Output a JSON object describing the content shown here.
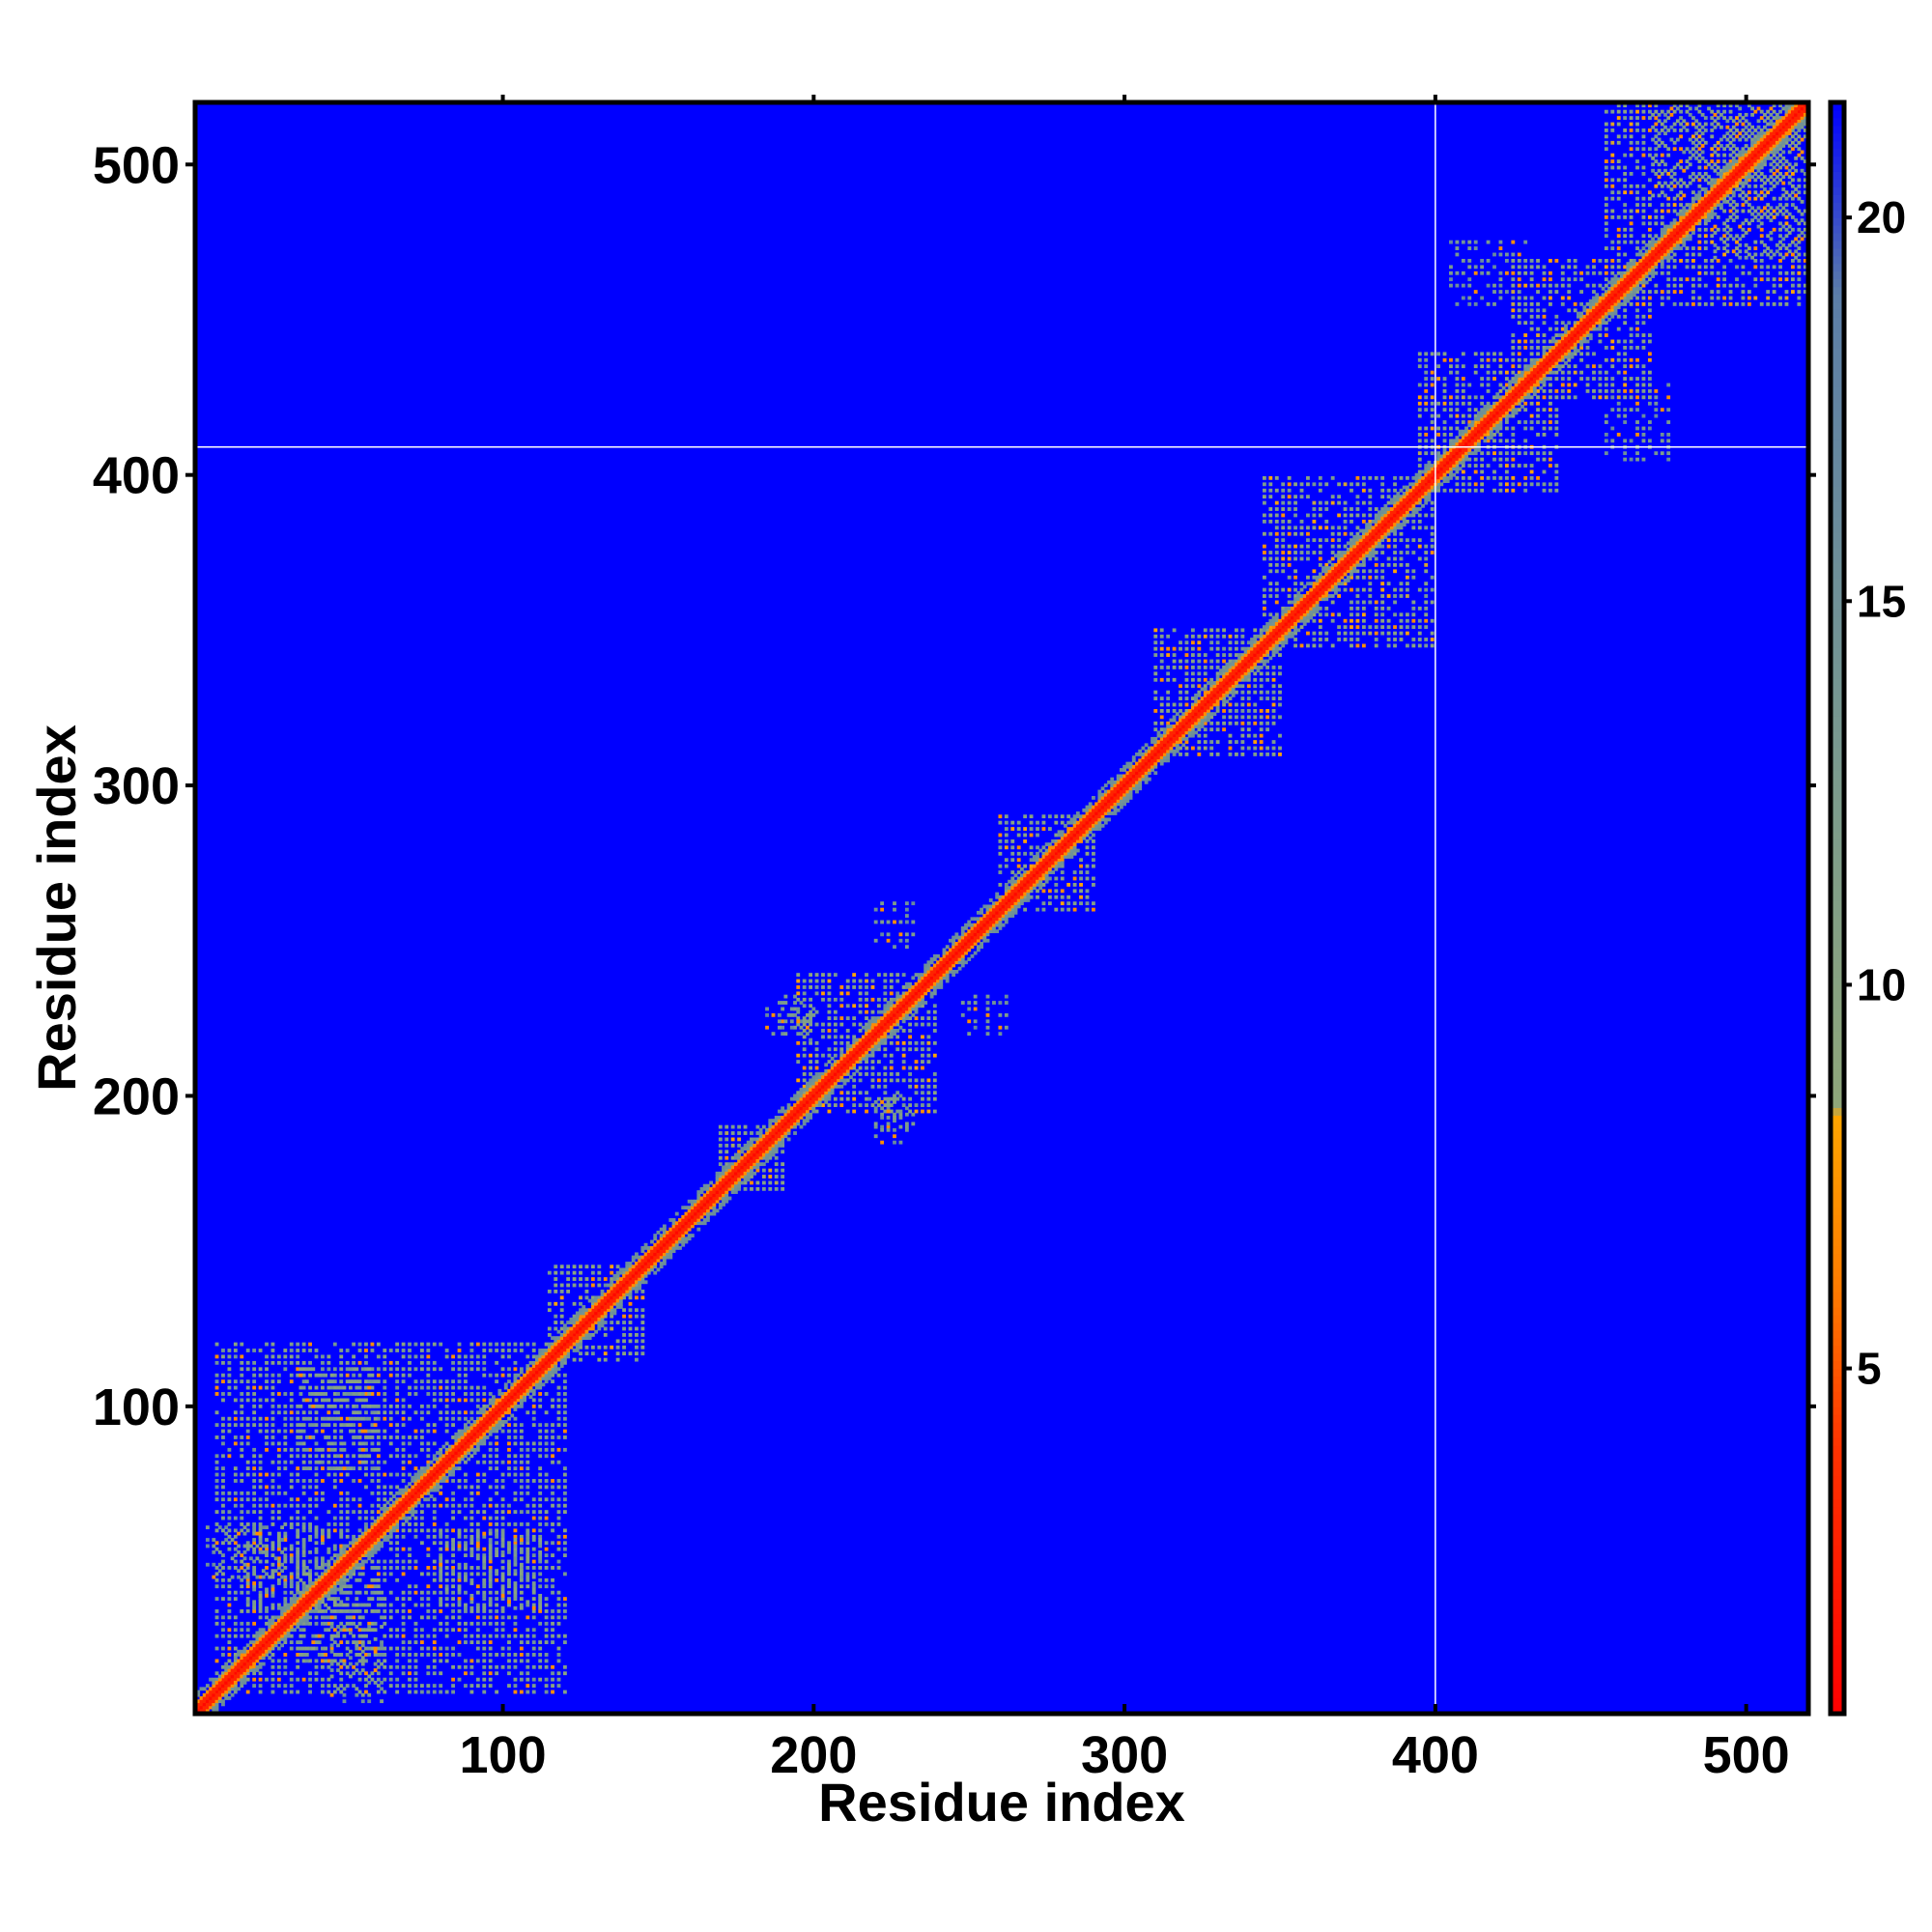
{
  "chart_data": {
    "type": "heatmap",
    "title": "",
    "xlabel": "Residue index",
    "ylabel": "Residue index",
    "x_ticks": [
      100,
      200,
      300,
      400,
      500
    ],
    "y_ticks": [
      100,
      200,
      300,
      400,
      500
    ],
    "xlim": [
      1,
      520
    ],
    "ylim": [
      1,
      520
    ],
    "background_value": 22,
    "colorbar": {
      "ticks": [
        5,
        10,
        15,
        20
      ],
      "range": [
        0.5,
        21.5
      ],
      "colors": [
        {
          "value": 0.5,
          "color": "#ff0000"
        },
        {
          "value": 4,
          "color": "#ff3300"
        },
        {
          "value": 6,
          "color": "#ff7a00"
        },
        {
          "value": 8.3,
          "color": "#ffa500"
        },
        {
          "value": 8.4,
          "color": "#8fa67a"
        },
        {
          "value": 13,
          "color": "#7a9a8f"
        },
        {
          "value": 19,
          "color": "#5c7ea8"
        },
        {
          "value": 21.5,
          "color": "#0000ff"
        }
      ]
    },
    "gridlines": {
      "x": [
        400
      ],
      "y": [
        409
      ]
    },
    "diagonal": {
      "start": 1,
      "end": 520,
      "core_value": 1,
      "halo_value": 5
    },
    "contact_clusters": [
      {
        "x": [
          8,
          120
        ],
        "y": [
          8,
          120
        ],
        "value": 12
      },
      {
        "x": [
          38,
          58
        ],
        "y": [
          80,
          108
        ],
        "value": 12
      },
      {
        "x": [
          80,
          112
        ],
        "y": [
          35,
          60
        ],
        "value": 12
      },
      {
        "x": [
          35,
          62
        ],
        "y": [
          18,
          48
        ],
        "value": 12
      },
      {
        "x": [
          5,
          30
        ],
        "y": [
          45,
          62
        ],
        "value": 14
      },
      {
        "x": [
          115,
          145
        ],
        "y": [
          115,
          145
        ],
        "value": 11
      },
      {
        "x": [
          170,
          190
        ],
        "y": [
          170,
          190
        ],
        "value": 11
      },
      {
        "x": [
          195,
          240
        ],
        "y": [
          195,
          240
        ],
        "value": 11
      },
      {
        "x": [
          190,
          200
        ],
        "y": [
          220,
          232
        ],
        "value": 14
      },
      {
        "x": [
          218,
          232
        ],
        "y": [
          185,
          200
        ],
        "value": 14
      },
      {
        "x": [
          220,
          230
        ],
        "y": [
          250,
          262
        ],
        "value": 14
      },
      {
        "x": [
          248,
          262
        ],
        "y": [
          222,
          232
        ],
        "value": 14
      },
      {
        "x": [
          260,
          290
        ],
        "y": [
          260,
          290
        ],
        "value": 11
      },
      {
        "x": [
          310,
          350
        ],
        "y": [
          310,
          350
        ],
        "value": 11
      },
      {
        "x": [
          320,
          340
        ],
        "y": [
          320,
          345
        ],
        "value": 12
      },
      {
        "x": [
          345,
          400
        ],
        "y": [
          345,
          400
        ],
        "value": 11
      },
      {
        "x": [
          395,
          440
        ],
        "y": [
          395,
          440
        ],
        "value": 11
      },
      {
        "x": [
          425,
          470
        ],
        "y": [
          425,
          470
        ],
        "value": 11
      },
      {
        "x": [
          455,
          520
        ],
        "y": [
          455,
          520
        ],
        "value": 11
      },
      {
        "x": [
          470,
          515
        ],
        "y": [
          490,
          520
        ],
        "value": 13
      },
      {
        "x": [
          405,
          430
        ],
        "y": [
          455,
          475
        ],
        "value": 14
      }
    ]
  }
}
